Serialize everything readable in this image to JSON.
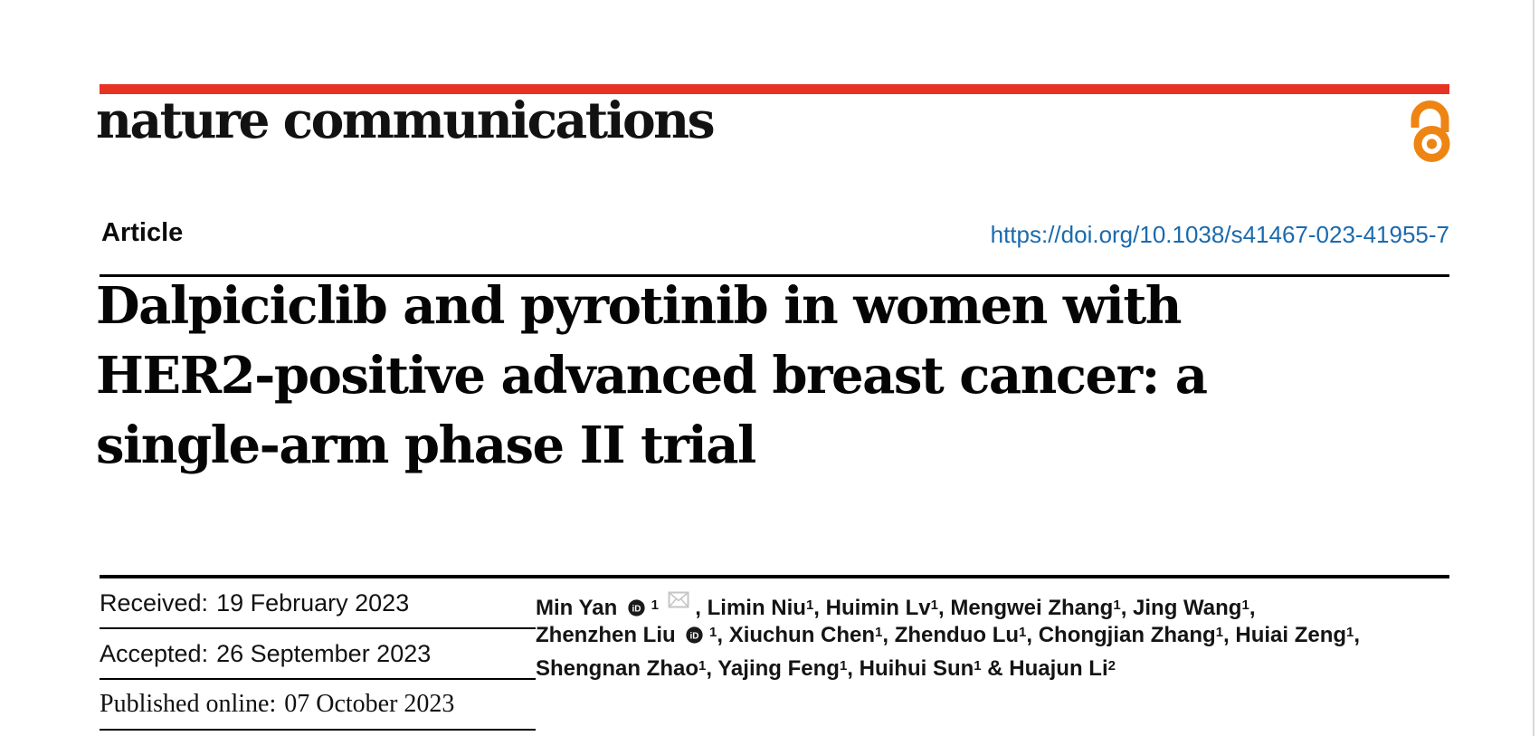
{
  "journal": {
    "name": "nature communications"
  },
  "brand": {
    "red": "#e63323",
    "open_access_orange": "#ee8412",
    "link_blue": "#1a6aae",
    "text_black": "#050505"
  },
  "icons": {
    "open_access": "open-padlock",
    "orcid": "iD-circle",
    "email": "envelope"
  },
  "article": {
    "type_label": "Article",
    "doi": "https://doi.org/10.1038/s41467-023-41955-7",
    "title_lines": [
      "Dalpiciclib and pyrotinib in women with",
      "HER2-positive advanced breast cancer: a",
      "single-arm phase II trial"
    ]
  },
  "dates": [
    {
      "label": "Received:",
      "value": "19 February 2023"
    },
    {
      "label": "Accepted:",
      "value": "26 September 2023"
    },
    {
      "label": "Published online:",
      "value": "07 October 2023"
    }
  ],
  "authors": {
    "lines": [
      [
        {
          "name": "Min Yan",
          "orcid": true,
          "sup": "1",
          "email": true,
          "tail": ", "
        },
        {
          "name": "Limin Niu",
          "sup": "1",
          "tail": ", "
        },
        {
          "name": "Huimin Lv",
          "sup": "1",
          "tail": ", "
        },
        {
          "name": "Mengwei Zhang",
          "sup": "1",
          "tail": ", "
        },
        {
          "name": "Jing Wang",
          "sup": "1",
          "tail": ","
        }
      ],
      [
        {
          "name": "Zhenzhen Liu",
          "orcid": true,
          "sup": "1",
          "tail": ", "
        },
        {
          "name": "Xiuchun Chen",
          "sup": "1",
          "tail": ", "
        },
        {
          "name": "Zhenduo Lu",
          "sup": "1",
          "tail": ", "
        },
        {
          "name": "Chongjian Zhang",
          "sup": "1",
          "tail": ", "
        },
        {
          "name": "Huiai Zeng",
          "sup": "1",
          "tail": ","
        }
      ],
      [
        {
          "name": "Shengnan Zhao",
          "sup": "1",
          "tail": ", "
        },
        {
          "name": "Yajing Feng",
          "sup": "1",
          "tail": ", "
        },
        {
          "name": "Huihui Sun",
          "sup": "1",
          "tail": " & "
        },
        {
          "name": "Huajun Li",
          "sup": "2",
          "tail": ""
        }
      ]
    ]
  }
}
